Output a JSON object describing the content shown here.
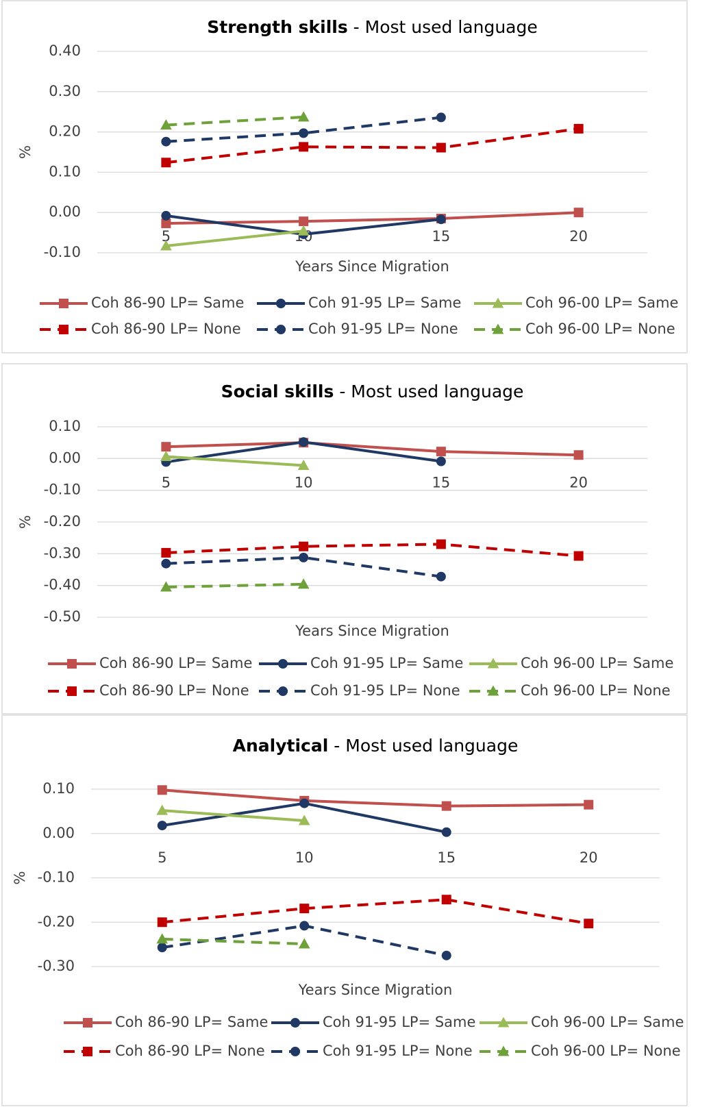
{
  "chart_data": [
    {
      "type": "line",
      "title": "Strength skills",
      "subtitle": " - Most used language",
      "xlabel": "Years Since Migration",
      "ylabel": "%",
      "categories": [
        "5",
        "10",
        "15",
        "20"
      ],
      "ylim": [
        -0.1,
        0.4
      ],
      "yticks": [
        {
          "value": -0.1,
          "label": "-0.10"
        },
        {
          "value": 0,
          "label": "0.00"
        },
        {
          "value": 0.1,
          "label": "0.10"
        },
        {
          "value": 0.2,
          "label": "0.20"
        },
        {
          "value": 0.3,
          "label": "0.30"
        },
        {
          "value": 0.4,
          "label": "0.40"
        }
      ],
      "grid": true,
      "series": [
        {
          "name": "Coh 86-90 LP= Same",
          "color": "#c0504d",
          "marker": "square",
          "dashed": false,
          "values": [
            -0.027,
            -0.022,
            -0.015,
            0.0
          ]
        },
        {
          "name": "Coh 91-95 LP= Same",
          "color": "#1f3864",
          "marker": "circle",
          "dashed": false,
          "values": [
            -0.008,
            -0.054,
            -0.017,
            null
          ]
        },
        {
          "name": "Coh 96-00 LP= Same",
          "color": "#9bbb59",
          "marker": "triangle",
          "dashed": false,
          "values": [
            -0.083,
            -0.046,
            null,
            null
          ]
        },
        {
          "name": "Coh 86-90 LP= None",
          "color": "#c00000",
          "marker": "square",
          "dashed": true,
          "values": [
            0.124,
            0.163,
            0.161,
            0.208
          ]
        },
        {
          "name": "Coh 91-95 LP= None",
          "color": "#1f3864",
          "marker": "circle",
          "dashed": true,
          "values": [
            0.176,
            0.197,
            0.236,
            null
          ]
        },
        {
          "name": "Coh 96-00 LP= None",
          "color": "#6ea13a",
          "marker": "triangle",
          "dashed": true,
          "values": [
            0.217,
            0.237,
            null,
            null
          ]
        }
      ]
    },
    {
      "type": "line",
      "title": "Social skills",
      "subtitle": " - Most used language",
      "xlabel": "Years Since Migration",
      "ylabel": "%",
      "categories": [
        "5",
        "10",
        "15",
        "20"
      ],
      "ylim": [
        -0.5,
        0.1
      ],
      "yticks": [
        {
          "value": -0.5,
          "label": "-0.50"
        },
        {
          "value": -0.4,
          "label": "-0.40"
        },
        {
          "value": -0.3,
          "label": "-0.30"
        },
        {
          "value": -0.2,
          "label": "-0.20"
        },
        {
          "value": -0.1,
          "label": "-0.10"
        },
        {
          "value": 0,
          "label": "0.00"
        },
        {
          "value": 0.1,
          "label": "0.10"
        }
      ],
      "grid": true,
      "series": [
        {
          "name": "Coh 86-90 LP= Same",
          "color": "#c0504d",
          "marker": "square",
          "dashed": false,
          "values": [
            0.037,
            0.05,
            0.022,
            0.011
          ]
        },
        {
          "name": "Coh 91-95 LP= Same",
          "color": "#1f3864",
          "marker": "circle",
          "dashed": false,
          "values": [
            -0.011,
            0.052,
            -0.009,
            null
          ]
        },
        {
          "name": "Coh 96-00 LP= Same",
          "color": "#9bbb59",
          "marker": "triangle",
          "dashed": false,
          "values": [
            0.006,
            -0.022,
            null,
            null
          ]
        },
        {
          "name": "Coh 86-90 LP= None",
          "color": "#c00000",
          "marker": "square",
          "dashed": true,
          "values": [
            -0.297,
            -0.277,
            -0.27,
            -0.307
          ]
        },
        {
          "name": "Coh 91-95 LP= None",
          "color": "#1f3864",
          "marker": "circle",
          "dashed": true,
          "values": [
            -0.331,
            -0.312,
            -0.372,
            null
          ]
        },
        {
          "name": "Coh 96-00 LP= None",
          "color": "#6ea13a",
          "marker": "triangle",
          "dashed": true,
          "values": [
            -0.405,
            -0.396,
            null,
            null
          ]
        }
      ]
    },
    {
      "type": "line",
      "title": "Analytical",
      "subtitle": " - Most used language",
      "xlabel": "Years Since Migration",
      "ylabel": "%",
      "categories": [
        "5",
        "10",
        "15",
        "20"
      ],
      "ylim": [
        -0.3,
        0.1
      ],
      "yticks": [
        {
          "value": -0.3,
          "label": "-0.30"
        },
        {
          "value": -0.2,
          "label": "-0.20"
        },
        {
          "value": -0.1,
          "label": "-0.10"
        },
        {
          "value": 0,
          "label": "0.00"
        },
        {
          "value": 0.1,
          "label": "0.10"
        }
      ],
      "grid": true,
      "series": [
        {
          "name": "Coh 86-90 LP= Same",
          "color": "#c0504d",
          "marker": "square",
          "dashed": false,
          "values": [
            0.098,
            0.074,
            0.062,
            0.065
          ]
        },
        {
          "name": "Coh 91-95 LP= Same",
          "color": "#1f3864",
          "marker": "circle",
          "dashed": false,
          "values": [
            0.018,
            0.068,
            0.003,
            null
          ]
        },
        {
          "name": "Coh 96-00 LP= Same",
          "color": "#9bbb59",
          "marker": "triangle",
          "dashed": false,
          "values": [
            0.052,
            0.029,
            null,
            null
          ]
        },
        {
          "name": "Coh 86-90 LP= None",
          "color": "#c00000",
          "marker": "square",
          "dashed": true,
          "values": [
            -0.2,
            -0.169,
            -0.149,
            -0.203
          ]
        },
        {
          "name": "Coh 91-95 LP= None",
          "color": "#1f3864",
          "marker": "circle",
          "dashed": true,
          "values": [
            -0.257,
            -0.208,
            -0.275,
            null
          ]
        },
        {
          "name": "Coh 96-00 LP= None",
          "color": "#6ea13a",
          "marker": "triangle",
          "dashed": true,
          "values": [
            -0.238,
            -0.249,
            null,
            null
          ]
        }
      ]
    }
  ]
}
